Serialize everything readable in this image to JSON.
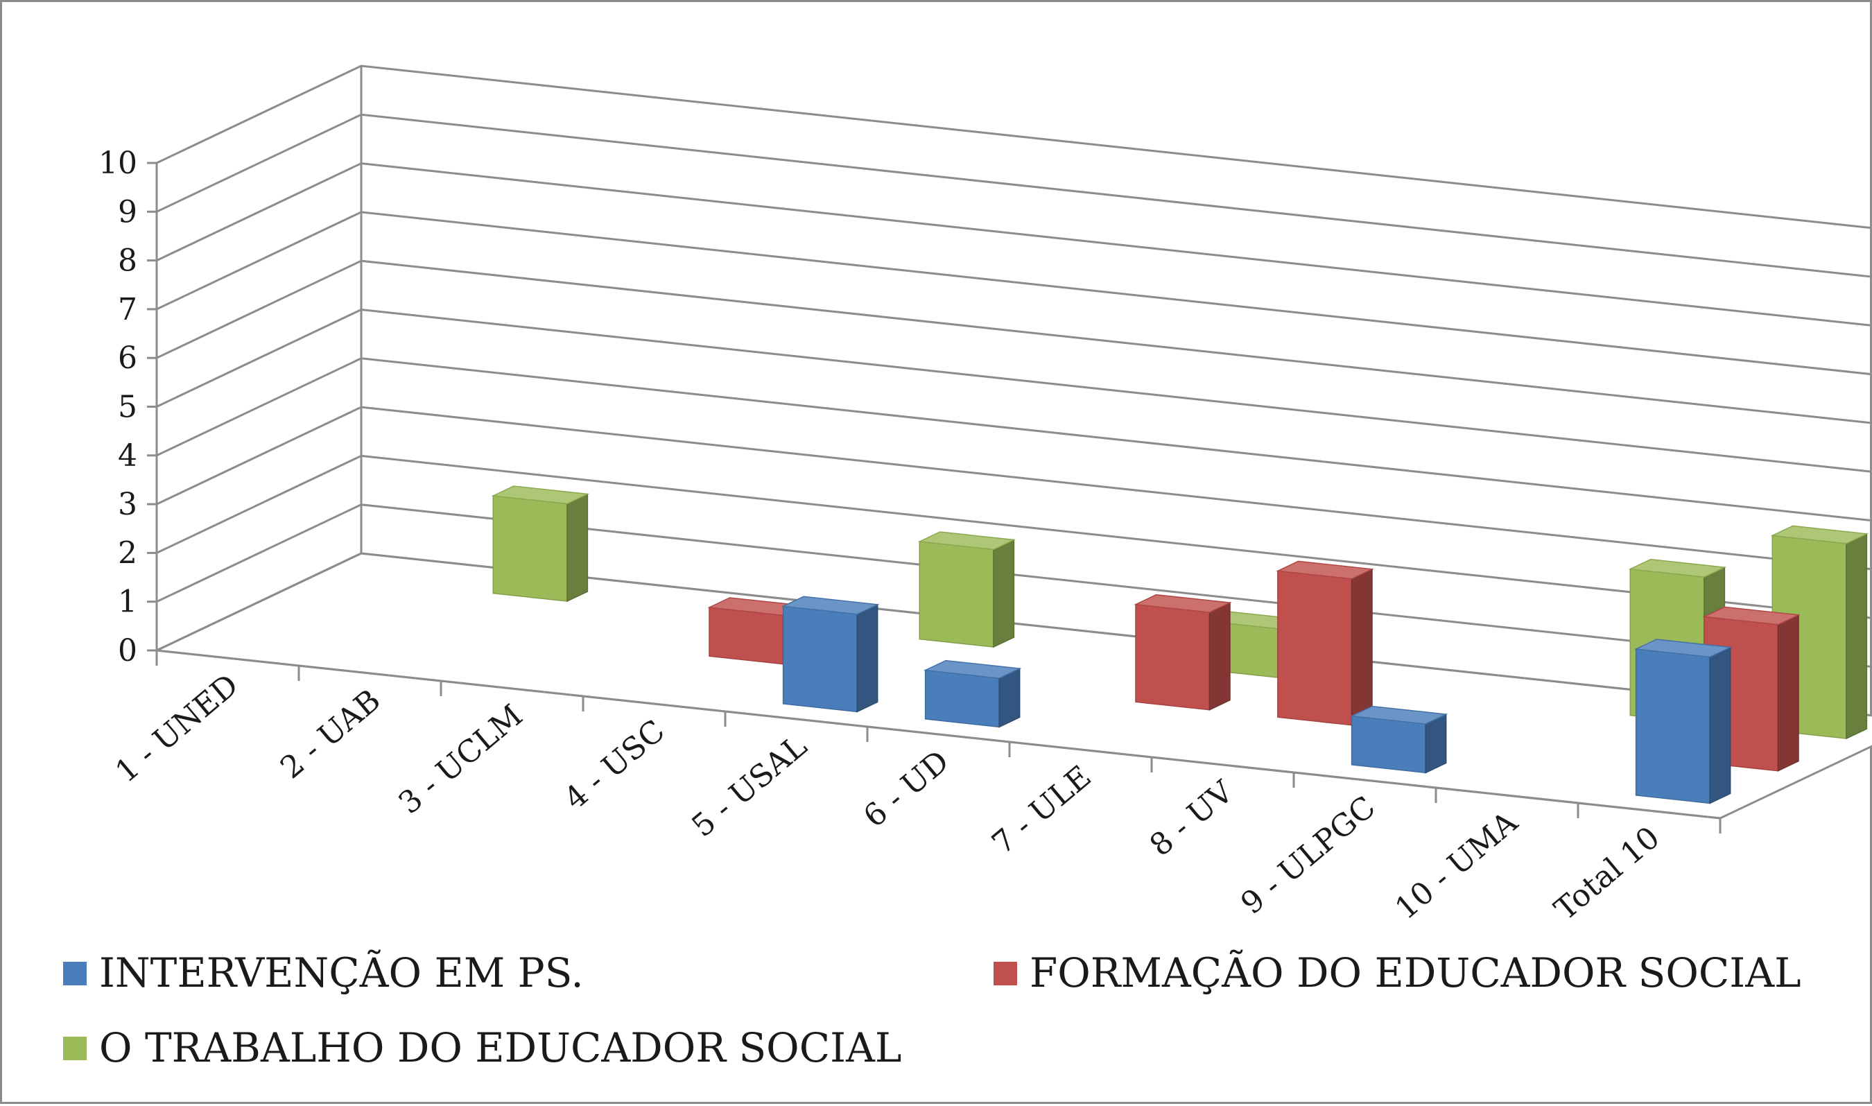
{
  "chart_data": {
    "type": "bar",
    "style": "3d-column",
    "categories": [
      "1 - UNED",
      "2 - UAB",
      "3 - UCLM",
      "4 - USC",
      "5 - USAL",
      "6 - UD",
      "7 - ULE",
      "8 - UV",
      "9 - ULPGC",
      "10 - UMA",
      "Total 10"
    ],
    "series": [
      {
        "name": "INTERVENÇÃO EM PS.",
        "color": "#4a7ebb",
        "values": [
          0,
          0,
          0,
          0,
          2,
          1,
          0,
          0,
          1,
          0,
          3
        ]
      },
      {
        "name": "FORMAÇÃO DO EDUCADOR SOCIAL",
        "color": "#c0504d",
        "values": [
          0,
          0,
          0,
          1,
          0,
          0,
          2,
          3,
          0,
          0,
          3
        ]
      },
      {
        "name": "O TRABALHO DO EDUCADOR SOCIAL",
        "color": "#9bbb59",
        "values": [
          0,
          2,
          0,
          0,
          2,
          0,
          1,
          0,
          0,
          3,
          4
        ]
      }
    ],
    "yticks": [
      "0",
      "1",
      "2",
      "3",
      "4",
      "5",
      "6",
      "7",
      "8",
      "9",
      "10"
    ],
    "ylim": [
      0,
      10
    ],
    "grid": true,
    "legend_position": "bottom",
    "title": "",
    "xlabel": "",
    "ylabel": ""
  }
}
